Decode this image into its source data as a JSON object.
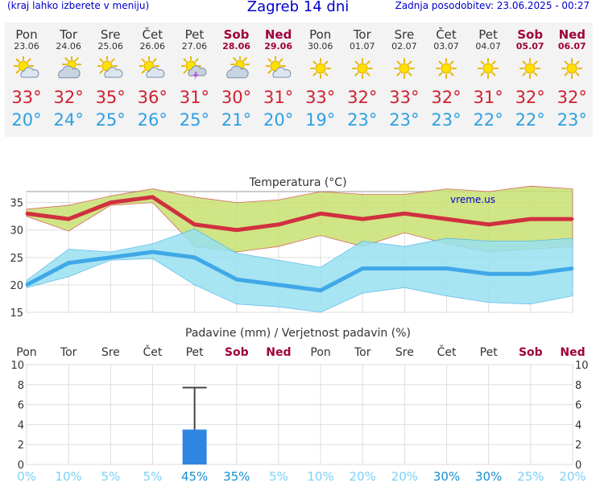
{
  "header": {
    "hint": "(kraj lahko izberete v meniju)",
    "title": "Zagreb 14 dni",
    "updated": "Zadnja posodobitev: 23.06.2025 - 00:27"
  },
  "days": [
    {
      "name": "Pon",
      "date": "23.06",
      "weekend": false,
      "icon": "partly-cloudy-icon",
      "tmax": "33°",
      "tmin": "20°"
    },
    {
      "name": "Tor",
      "date": "24.06",
      "weekend": false,
      "icon": "cloudy-sun-icon",
      "tmax": "32°",
      "tmin": "24°"
    },
    {
      "name": "Sre",
      "date": "25.06",
      "weekend": false,
      "icon": "partly-cloudy-icon",
      "tmax": "35°",
      "tmin": "25°"
    },
    {
      "name": "Čet",
      "date": "26.06",
      "weekend": false,
      "icon": "partly-cloudy-icon",
      "tmax": "36°",
      "tmin": "26°"
    },
    {
      "name": "Pet",
      "date": "27.06",
      "weekend": false,
      "icon": "thunderstorm-icon",
      "tmax": "31°",
      "tmin": "25°"
    },
    {
      "name": "Sob",
      "date": "28.06",
      "weekend": true,
      "icon": "cloudy-sun-icon",
      "tmax": "30°",
      "tmin": "21°"
    },
    {
      "name": "Ned",
      "date": "29.06",
      "weekend": true,
      "icon": "partly-cloudy-icon",
      "tmax": "31°",
      "tmin": "20°"
    },
    {
      "name": "Pon",
      "date": "30.06",
      "weekend": false,
      "icon": "sun-icon",
      "tmax": "33°",
      "tmin": "19°"
    },
    {
      "name": "Tor",
      "date": "01.07",
      "weekend": false,
      "icon": "sun-icon",
      "tmax": "32°",
      "tmin": "23°"
    },
    {
      "name": "Sre",
      "date": "02.07",
      "weekend": false,
      "icon": "sun-icon",
      "tmax": "33°",
      "tmin": "23°"
    },
    {
      "name": "Čet",
      "date": "03.07",
      "weekend": false,
      "icon": "sun-icon",
      "tmax": "32°",
      "tmin": "23°"
    },
    {
      "name": "Pet",
      "date": "04.07",
      "weekend": false,
      "icon": "sun-icon",
      "tmax": "31°",
      "tmin": "22°"
    },
    {
      "name": "Sob",
      "date": "05.07",
      "weekend": true,
      "icon": "sun-icon",
      "tmax": "32°",
      "tmin": "22°"
    },
    {
      "name": "Ned",
      "date": "06.07",
      "weekend": true,
      "icon": "sun-icon",
      "tmax": "32°",
      "tmin": "23°"
    }
  ],
  "chart_data": [
    {
      "type": "line",
      "title": "Temperatura (°C)",
      "watermark": "vreme.us",
      "ylim": [
        15,
        37
      ],
      "yticks": [
        15,
        20,
        25,
        30,
        35
      ],
      "grid": true,
      "series": [
        {
          "name": "max",
          "color": "#d03040",
          "values": [
            33,
            32,
            35,
            36,
            31,
            30,
            31,
            33,
            32,
            33,
            32,
            31,
            32,
            32
          ],
          "range_low": [
            32.5,
            29.8,
            34.5,
            35,
            27,
            26,
            27,
            29,
            27,
            29.5,
            27.5,
            26,
            26.5,
            27
          ],
          "range_high": [
            33.8,
            34.5,
            36.2,
            37.5,
            36,
            35,
            35.5,
            37,
            36.5,
            36.5,
            37.5,
            37,
            38,
            37.5
          ],
          "band_color": "#c8e070"
        },
        {
          "name": "min",
          "color": "#40a8e8",
          "values": [
            20,
            24,
            25,
            26,
            25,
            21,
            20,
            19,
            23,
            23,
            23,
            22,
            22,
            23
          ],
          "range_low": [
            19.5,
            21.5,
            24.5,
            24.8,
            20,
            16.5,
            16,
            15,
            18.5,
            19.5,
            18,
            16.8,
            16.5,
            18
          ],
          "range_high": [
            20.8,
            26.5,
            26,
            27.5,
            30.2,
            25.8,
            24.5,
            23.2,
            28,
            27,
            28.5,
            28,
            28,
            28.5
          ],
          "band_color": "#98e0f0"
        }
      ]
    },
    {
      "type": "bar",
      "title": "Padavine (mm) / Verjetnost padavin (%)",
      "categories": [
        "Pon",
        "Tor",
        "Sre",
        "Čet",
        "Pet",
        "Sob",
        "Ned",
        "Pon",
        "Tor",
        "Sre",
        "Čet",
        "Pet",
        "Sob",
        "Ned"
      ],
      "category_weekend": [
        false,
        false,
        false,
        false,
        false,
        true,
        true,
        false,
        false,
        false,
        false,
        false,
        true,
        true
      ],
      "values": [
        0,
        0,
        0,
        0,
        3.5,
        0,
        0,
        0,
        0,
        0,
        0,
        0,
        0,
        0
      ],
      "error_high": [
        null,
        null,
        null,
        null,
        7.7,
        null,
        null,
        null,
        null,
        null,
        null,
        null,
        null,
        null
      ],
      "ylim": [
        0,
        10
      ],
      "yticks": [
        0,
        2,
        4,
        6,
        8,
        10
      ],
      "probability": [
        "0%",
        "10%",
        "5%",
        "5%",
        "45%",
        "35%",
        "5%",
        "10%",
        "20%",
        "20%",
        "30%",
        "30%",
        "25%",
        "20%"
      ],
      "probability_values": [
        0,
        10,
        5,
        5,
        45,
        35,
        5,
        10,
        20,
        20,
        30,
        30,
        25,
        20
      ],
      "bar_color": "#2f86e0"
    }
  ]
}
